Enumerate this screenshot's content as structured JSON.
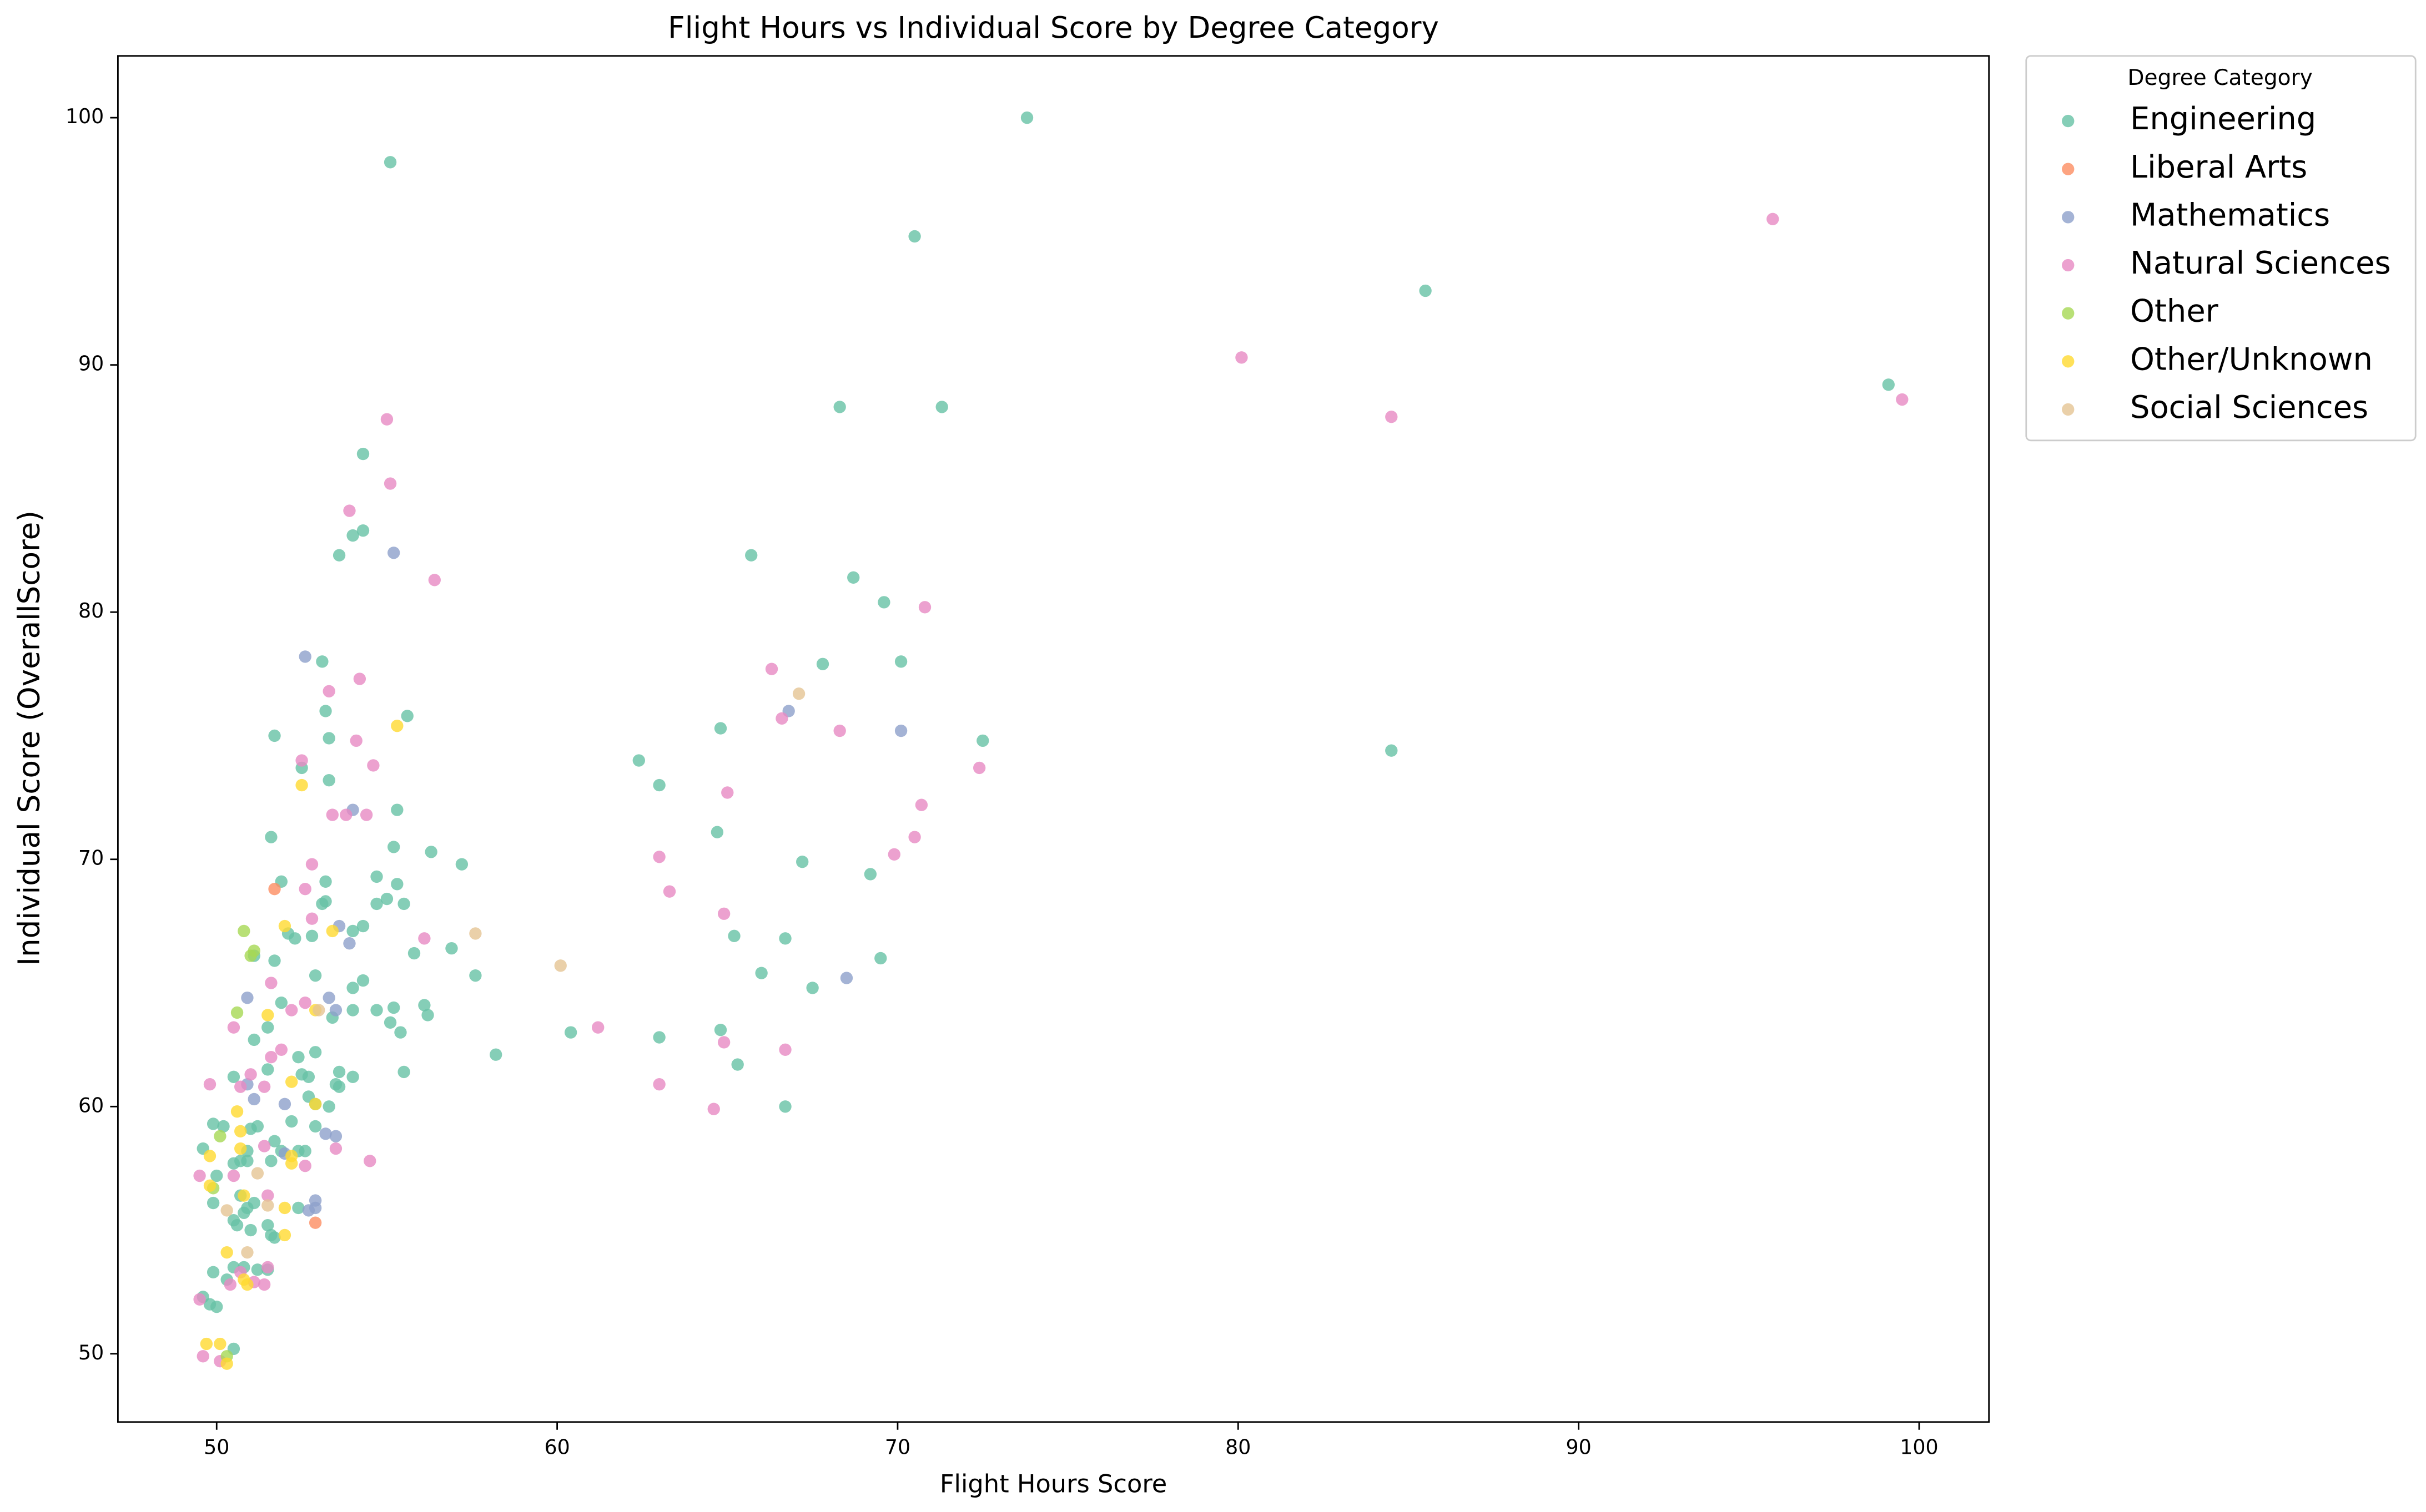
{
  "chart_data": {
    "type": "scatter",
    "title": "Flight Hours vs Individual Score by Degree Category",
    "xlabel": "Flight Hours Score",
    "ylabel": "Individual Score (OverallScore)",
    "legend_title": "Degree Category",
    "legend": "outside upper right",
    "grid": false,
    "xlim": [
      47.1,
      102.05
    ],
    "ylim": [
      47.24,
      102.5
    ],
    "xticks": [
      50,
      60,
      70,
      80,
      90,
      100
    ],
    "yticks": [
      50,
      60,
      70,
      80,
      90,
      100
    ],
    "series": [
      {
        "name": "Engineering",
        "color": "#66c2a5",
        "x": [
          73.8,
          55.1,
          70.5,
          85.5,
          68.3,
          71.3,
          54.3,
          54.3,
          54.0,
          53.6,
          65.7,
          68.7,
          69.6,
          67.8,
          70.1,
          53.1,
          55.6,
          53.2,
          51.7,
          64.8,
          72.5,
          84.5,
          62.4,
          53.3,
          63.0,
          52.5,
          53.3,
          55.3,
          64.7,
          51.6,
          55.2,
          56.3,
          57.2,
          67.2,
          69.2,
          54.7,
          51.9,
          53.2,
          55.3,
          55.5,
          55.0,
          54.7,
          53.1,
          53.2,
          56.9,
          55.8,
          54.3,
          54.0,
          52.8,
          52.1,
          52.3,
          51.1,
          51.7,
          66.7,
          65.2,
          69.5,
          67.5,
          66.0,
          57.6,
          52.9,
          54.3,
          54.0,
          56.1,
          56.2,
          55.2,
          54.7,
          54.0,
          51.9,
          53.4,
          55.1,
          55.4,
          51.5,
          51.1,
          60.4,
          63.0,
          64.8,
          58.2,
          65.3,
          52.4,
          52.9,
          53.6,
          54.0,
          55.5,
          52.7,
          52.5,
          51.5,
          50.5,
          53.5,
          53.6,
          52.7,
          52.9,
          53.3,
          66.7,
          52.2,
          49.9,
          50.2,
          51.2,
          51.0,
          51.7,
          52.9,
          49.6,
          50.9,
          51.9,
          52.4,
          52.6,
          51.6,
          50.9,
          50.0,
          50.7,
          50.5,
          49.9,
          50.7,
          50.9,
          50.8,
          51.1,
          52.4,
          50.5,
          50.6,
          51.0,
          51.5,
          51.6,
          51.7,
          49.9,
          50.5,
          50.8,
          51.2,
          51.5,
          50.3,
          49.8,
          50.0,
          49.6,
          50.5,
          99.1
        ],
        "y": [
          100.0,
          98.2,
          95.2,
          93.0,
          88.3,
          88.3,
          86.4,
          83.3,
          83.1,
          82.3,
          82.3,
          81.4,
          80.4,
          77.9,
          78.0,
          78.0,
          75.8,
          76.0,
          75.0,
          75.3,
          74.8,
          74.4,
          74.0,
          73.2,
          73.0,
          73.7,
          74.9,
          72.0,
          71.1,
          70.9,
          70.5,
          70.3,
          69.8,
          69.9,
          69.4,
          69.3,
          69.1,
          69.1,
          69.0,
          68.2,
          68.4,
          68.2,
          68.2,
          68.3,
          66.4,
          66.2,
          67.3,
          67.1,
          66.9,
          67.0,
          66.8,
          66.1,
          65.9,
          66.8,
          66.9,
          66.0,
          64.8,
          65.4,
          65.3,
          65.3,
          65.1,
          64.8,
          64.1,
          63.7,
          64.0,
          63.9,
          63.9,
          64.2,
          63.6,
          63.4,
          63.0,
          63.2,
          62.7,
          63.0,
          62.8,
          63.1,
          62.1,
          61.7,
          62.0,
          62.2,
          61.4,
          61.2,
          61.4,
          61.2,
          61.3,
          61.5,
          61.2,
          60.9,
          60.8,
          60.4,
          60.1,
          60.0,
          60.0,
          59.4,
          59.3,
          59.2,
          59.2,
          59.1,
          58.6,
          59.2,
          58.3,
          58.2,
          58.2,
          58.2,
          58.2,
          57.8,
          57.8,
          57.2,
          57.8,
          57.7,
          56.1,
          56.4,
          55.9,
          55.7,
          56.1,
          55.9,
          55.4,
          55.2,
          55.0,
          55.2,
          54.8,
          54.7,
          53.3,
          53.5,
          53.5,
          53.4,
          53.4,
          53.0,
          52.0,
          51.9,
          52.3,
          50.2,
          89.2
        ]
      },
      {
        "name": "Liberal Arts",
        "color": "#fc8d62",
        "x": [
          51.7,
          52.9
        ],
        "y": [
          68.8,
          55.3
        ]
      },
      {
        "name": "Mathematics",
        "color": "#8da0cb",
        "x": [
          55.2,
          52.6,
          66.8,
          70.1,
          54.0,
          53.9,
          68.5,
          53.6,
          50.9,
          53.3,
          53.5,
          50.9,
          51.1,
          52.0,
          53.2,
          53.5,
          52.9,
          52.0,
          52.9,
          52.7
        ],
        "y": [
          82.4,
          78.2,
          76.0,
          75.2,
          72.0,
          66.6,
          65.2,
          67.3,
          64.4,
          64.4,
          63.9,
          60.9,
          60.3,
          60.1,
          58.9,
          58.8,
          56.2,
          58.1,
          55.9,
          55.8
        ]
      },
      {
        "name": "Natural Sciences",
        "color": "#e78ac3",
        "x": [
          95.7,
          80.1,
          84.5,
          99.5,
          55.0,
          55.1,
          53.9,
          56.4,
          70.8,
          66.3,
          54.2,
          53.3,
          66.6,
          68.3,
          54.1,
          54.6,
          52.5,
          72.4,
          65.0,
          70.7,
          53.4,
          53.8,
          54.4,
          70.5,
          69.9,
          63.0,
          52.8,
          63.3,
          52.6,
          56.1,
          64.9,
          52.8,
          51.6,
          52.2,
          52.6,
          50.5,
          61.2,
          64.9,
          66.7,
          51.9,
          51.6,
          63.0,
          64.6,
          50.7,
          49.8,
          51.0,
          51.4,
          53.5,
          54.5,
          52.6,
          51.4,
          49.5,
          50.5,
          51.5,
          51.5,
          51.1,
          51.4,
          50.7,
          50.4,
          49.6,
          50.1,
          49.5
        ],
        "y": [
          95.9,
          90.3,
          87.9,
          88.6,
          87.8,
          85.2,
          84.1,
          81.3,
          80.2,
          77.7,
          77.3,
          76.8,
          75.7,
          75.2,
          74.8,
          73.8,
          74.0,
          73.7,
          72.7,
          72.2,
          71.8,
          71.8,
          71.8,
          70.9,
          70.2,
          70.1,
          69.8,
          68.7,
          68.8,
          66.8,
          67.8,
          67.6,
          65.0,
          63.9,
          64.2,
          63.2,
          63.2,
          62.6,
          62.3,
          62.3,
          62.0,
          60.9,
          59.9,
          60.8,
          60.9,
          61.3,
          60.8,
          58.3,
          57.8,
          57.6,
          58.4,
          57.2,
          57.2,
          56.4,
          53.5,
          52.9,
          52.8,
          53.3,
          52.8,
          49.9,
          49.7,
          52.2
        ]
      },
      {
        "name": "Other",
        "color": "#a6d854",
        "x": [
          50.8,
          51.1,
          51.0,
          50.6,
          50.1,
          49.9,
          50.3
        ],
        "y": [
          67.1,
          66.3,
          66.1,
          63.8,
          58.8,
          56.7,
          49.9
        ]
      },
      {
        "name": "Other/Unknown",
        "color": "#ffd92f",
        "x": [
          55.3,
          52.5,
          52.0,
          53.4,
          51.5,
          52.9,
          52.2,
          52.9,
          50.6,
          50.7,
          49.8,
          50.7,
          52.2,
          52.2,
          49.8,
          50.8,
          52.0,
          52.0,
          50.3,
          50.8,
          50.9,
          49.7,
          50.1,
          50.3
        ],
        "y": [
          75.4,
          73.0,
          67.3,
          67.1,
          63.7,
          63.9,
          61.0,
          60.1,
          59.8,
          59.0,
          58.0,
          58.3,
          58.0,
          57.7,
          56.8,
          56.4,
          55.9,
          54.8,
          54.1,
          53.0,
          52.8,
          50.4,
          50.4,
          49.6
        ]
      },
      {
        "name": "Social Sciences",
        "color": "#e5c494",
        "x": [
          67.1,
          57.6,
          60.1,
          53.0,
          51.2,
          50.3,
          50.9,
          51.5
        ],
        "y": [
          76.7,
          67.0,
          65.7,
          63.9,
          57.3,
          55.8,
          54.1,
          56.0
        ]
      }
    ]
  }
}
